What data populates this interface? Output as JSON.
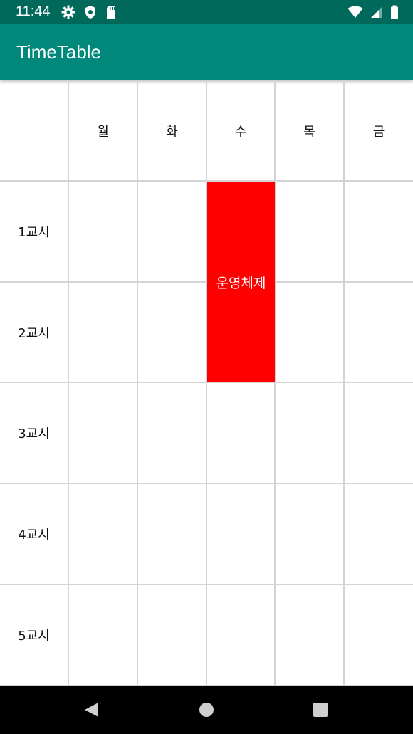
{
  "status_bar": {
    "time": "11:44",
    "icons": [
      "gear-icon",
      "shield-icon",
      "sd-card-icon",
      "wifi-icon",
      "signal-icon",
      "battery-icon"
    ]
  },
  "app_bar": {
    "title": "TimeTable"
  },
  "timetable": {
    "days": [
      "월",
      "화",
      "수",
      "목",
      "금"
    ],
    "periods": [
      "1교시",
      "2교시",
      "3교시",
      "4교시",
      "5교시"
    ],
    "events": [
      {
        "title": "운영체제",
        "day": "수",
        "start_period": 1,
        "end_period": 2,
        "color": "#FF0000"
      }
    ]
  },
  "colors": {
    "app_bar": "#00897B",
    "status_bar": "#00695C",
    "grid_line": "#D4D4D4"
  }
}
